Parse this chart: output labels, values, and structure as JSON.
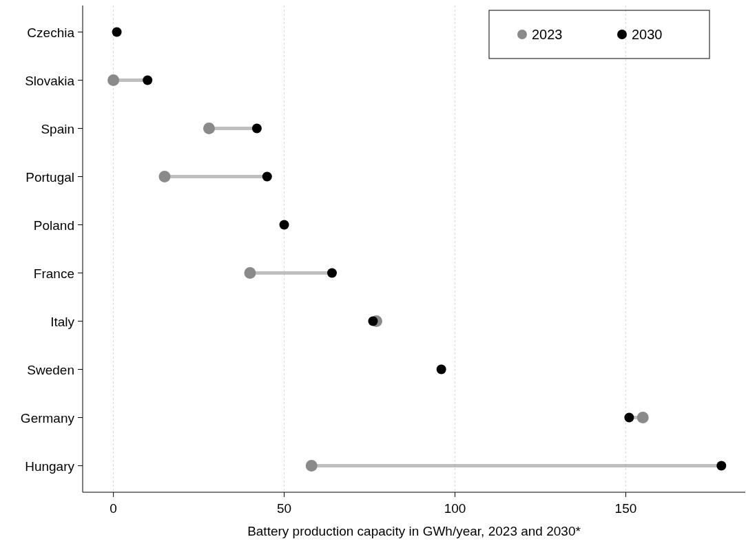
{
  "chart_data": {
    "type": "scatter",
    "orientation": "horizontal",
    "xlabel": "Battery production capacity in GWh/year, 2023 and 2030*",
    "categories": [
      "Czechia",
      "Slovakia",
      "Spain",
      "Portugal",
      "Poland",
      "France",
      "Italy",
      "Sweden",
      "Germany",
      "Hungary"
    ],
    "series": [
      {
        "name": "2023",
        "color": "#8a8a8a",
        "values": [
          null,
          0,
          28,
          15,
          null,
          40,
          77,
          null,
          155,
          58
        ]
      },
      {
        "name": "2030",
        "color": "#000000",
        "values": [
          1,
          10,
          42,
          45,
          50,
          64,
          76,
          96,
          151,
          178
        ]
      }
    ],
    "xlim": [
      -9,
      185
    ],
    "xticks": [
      0,
      50,
      100,
      150
    ],
    "grid": "x",
    "legend": "top right",
    "marker": "circle"
  }
}
